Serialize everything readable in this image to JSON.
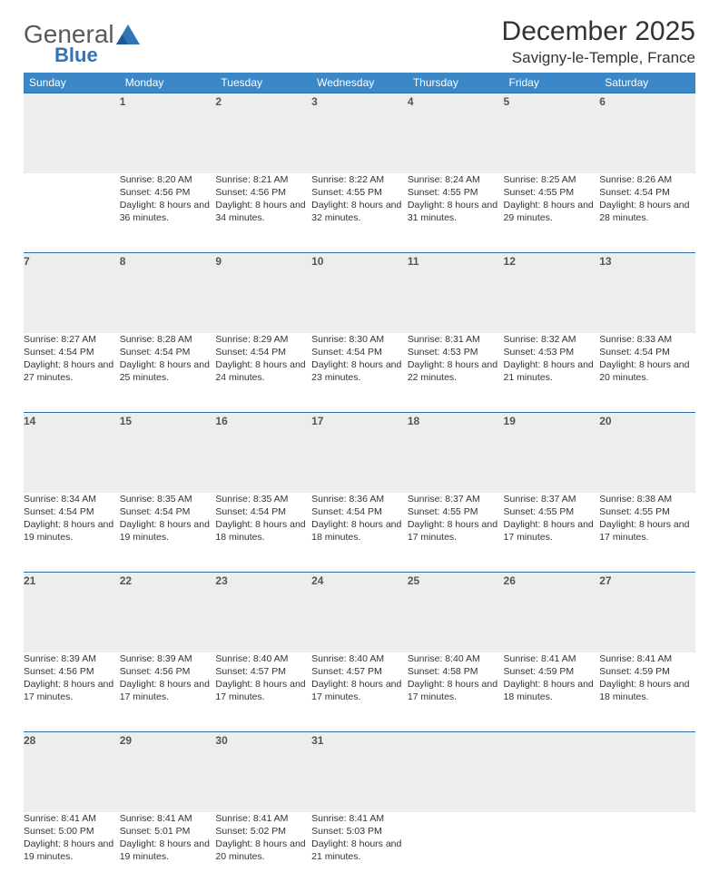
{
  "logo": {
    "word1": "General",
    "word2": "Blue"
  },
  "title": "December 2025",
  "location": "Savigny-le-Temple, France",
  "colors": {
    "header_bg": "#3b87c8",
    "header_text": "#ffffff",
    "daynum_bg": "#eceded",
    "row_divider": "#2f6fa8",
    "logo_gray": "#58595b",
    "logo_blue": "#2f74b5",
    "body_text": "#333333"
  },
  "typography": {
    "title_fontsize": 30,
    "location_fontsize": 17,
    "header_fontsize": 12,
    "daynum_fontsize": 12,
    "info_fontsize": 10.5
  },
  "weekdays": [
    "Sunday",
    "Monday",
    "Tuesday",
    "Wednesday",
    "Thursday",
    "Friday",
    "Saturday"
  ],
  "weeks": [
    [
      null,
      {
        "n": "1",
        "sr": "Sunrise: 8:20 AM",
        "ss": "Sunset: 4:56 PM",
        "dl": "Daylight: 8 hours and 36 minutes."
      },
      {
        "n": "2",
        "sr": "Sunrise: 8:21 AM",
        "ss": "Sunset: 4:56 PM",
        "dl": "Daylight: 8 hours and 34 minutes."
      },
      {
        "n": "3",
        "sr": "Sunrise: 8:22 AM",
        "ss": "Sunset: 4:55 PM",
        "dl": "Daylight: 8 hours and 32 minutes."
      },
      {
        "n": "4",
        "sr": "Sunrise: 8:24 AM",
        "ss": "Sunset: 4:55 PM",
        "dl": "Daylight: 8 hours and 31 minutes."
      },
      {
        "n": "5",
        "sr": "Sunrise: 8:25 AM",
        "ss": "Sunset: 4:55 PM",
        "dl": "Daylight: 8 hours and 29 minutes."
      },
      {
        "n": "6",
        "sr": "Sunrise: 8:26 AM",
        "ss": "Sunset: 4:54 PM",
        "dl": "Daylight: 8 hours and 28 minutes."
      }
    ],
    [
      {
        "n": "7",
        "sr": "Sunrise: 8:27 AM",
        "ss": "Sunset: 4:54 PM",
        "dl": "Daylight: 8 hours and 27 minutes."
      },
      {
        "n": "8",
        "sr": "Sunrise: 8:28 AM",
        "ss": "Sunset: 4:54 PM",
        "dl": "Daylight: 8 hours and 25 minutes."
      },
      {
        "n": "9",
        "sr": "Sunrise: 8:29 AM",
        "ss": "Sunset: 4:54 PM",
        "dl": "Daylight: 8 hours and 24 minutes."
      },
      {
        "n": "10",
        "sr": "Sunrise: 8:30 AM",
        "ss": "Sunset: 4:54 PM",
        "dl": "Daylight: 8 hours and 23 minutes."
      },
      {
        "n": "11",
        "sr": "Sunrise: 8:31 AM",
        "ss": "Sunset: 4:53 PM",
        "dl": "Daylight: 8 hours and 22 minutes."
      },
      {
        "n": "12",
        "sr": "Sunrise: 8:32 AM",
        "ss": "Sunset: 4:53 PM",
        "dl": "Daylight: 8 hours and 21 minutes."
      },
      {
        "n": "13",
        "sr": "Sunrise: 8:33 AM",
        "ss": "Sunset: 4:54 PM",
        "dl": "Daylight: 8 hours and 20 minutes."
      }
    ],
    [
      {
        "n": "14",
        "sr": "Sunrise: 8:34 AM",
        "ss": "Sunset: 4:54 PM",
        "dl": "Daylight: 8 hours and 19 minutes."
      },
      {
        "n": "15",
        "sr": "Sunrise: 8:35 AM",
        "ss": "Sunset: 4:54 PM",
        "dl": "Daylight: 8 hours and 19 minutes."
      },
      {
        "n": "16",
        "sr": "Sunrise: 8:35 AM",
        "ss": "Sunset: 4:54 PM",
        "dl": "Daylight: 8 hours and 18 minutes."
      },
      {
        "n": "17",
        "sr": "Sunrise: 8:36 AM",
        "ss": "Sunset: 4:54 PM",
        "dl": "Daylight: 8 hours and 18 minutes."
      },
      {
        "n": "18",
        "sr": "Sunrise: 8:37 AM",
        "ss": "Sunset: 4:55 PM",
        "dl": "Daylight: 8 hours and 17 minutes."
      },
      {
        "n": "19",
        "sr": "Sunrise: 8:37 AM",
        "ss": "Sunset: 4:55 PM",
        "dl": "Daylight: 8 hours and 17 minutes."
      },
      {
        "n": "20",
        "sr": "Sunrise: 8:38 AM",
        "ss": "Sunset: 4:55 PM",
        "dl": "Daylight: 8 hours and 17 minutes."
      }
    ],
    [
      {
        "n": "21",
        "sr": "Sunrise: 8:39 AM",
        "ss": "Sunset: 4:56 PM",
        "dl": "Daylight: 8 hours and 17 minutes."
      },
      {
        "n": "22",
        "sr": "Sunrise: 8:39 AM",
        "ss": "Sunset: 4:56 PM",
        "dl": "Daylight: 8 hours and 17 minutes."
      },
      {
        "n": "23",
        "sr": "Sunrise: 8:40 AM",
        "ss": "Sunset: 4:57 PM",
        "dl": "Daylight: 8 hours and 17 minutes."
      },
      {
        "n": "24",
        "sr": "Sunrise: 8:40 AM",
        "ss": "Sunset: 4:57 PM",
        "dl": "Daylight: 8 hours and 17 minutes."
      },
      {
        "n": "25",
        "sr": "Sunrise: 8:40 AM",
        "ss": "Sunset: 4:58 PM",
        "dl": "Daylight: 8 hours and 17 minutes."
      },
      {
        "n": "26",
        "sr": "Sunrise: 8:41 AM",
        "ss": "Sunset: 4:59 PM",
        "dl": "Daylight: 8 hours and 18 minutes."
      },
      {
        "n": "27",
        "sr": "Sunrise: 8:41 AM",
        "ss": "Sunset: 4:59 PM",
        "dl": "Daylight: 8 hours and 18 minutes."
      }
    ],
    [
      {
        "n": "28",
        "sr": "Sunrise: 8:41 AM",
        "ss": "Sunset: 5:00 PM",
        "dl": "Daylight: 8 hours and 19 minutes."
      },
      {
        "n": "29",
        "sr": "Sunrise: 8:41 AM",
        "ss": "Sunset: 5:01 PM",
        "dl": "Daylight: 8 hours and 19 minutes."
      },
      {
        "n": "30",
        "sr": "Sunrise: 8:41 AM",
        "ss": "Sunset: 5:02 PM",
        "dl": "Daylight: 8 hours and 20 minutes."
      },
      {
        "n": "31",
        "sr": "Sunrise: 8:41 AM",
        "ss": "Sunset: 5:03 PM",
        "dl": "Daylight: 8 hours and 21 minutes."
      },
      null,
      null,
      null
    ]
  ]
}
